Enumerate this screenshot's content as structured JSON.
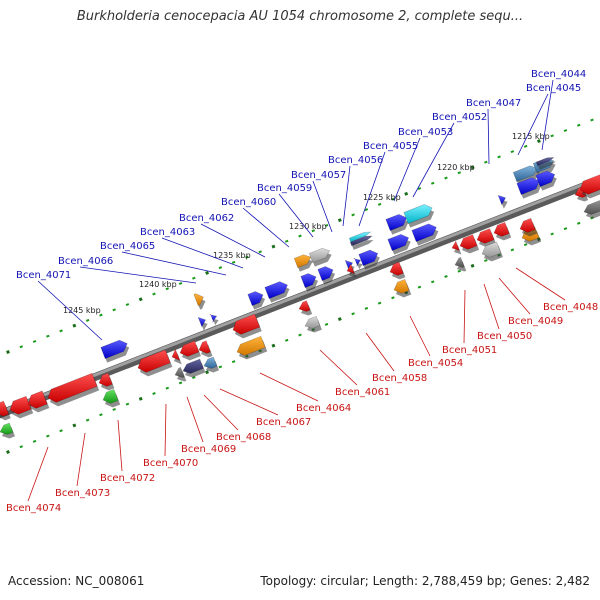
{
  "title": "Burkholderia cenocepacia AU 1054 chromosome 2, complete sequ...",
  "footer": {
    "accession": "Accession: NC_008061",
    "summary": "Topology: circular; Length: 2,788,459 bp; Genes: 2,482"
  },
  "colors": {
    "backbone": "#8a8a8a",
    "tick_major": "#1a8a1a",
    "forward_label": "#1414b4",
    "reverse_label": "#c81414",
    "blue_gene": "#1a1ae6",
    "red_gene": "#e61a1a",
    "orange_gene": "#f08c00",
    "gray_gene": "#b4b4b4",
    "cyan_gene": "#19d2e6",
    "dark_gene": "#3c3c78",
    "steel_gene": "#4682b4",
    "green_gene": "#1eb41e"
  },
  "ruler_labels": [
    "1215 kbp",
    "1220 kbp",
    "1225 kbp",
    "1230 kbp",
    "1235 kbp",
    "1240 kbp",
    "1245 kbp"
  ],
  "forward_genes": [
    "Bcen_4044",
    "Bcen_4045",
    "Bcen_4047",
    "Bcen_4052",
    "Bcen_4053",
    "Bcen_4055",
    "Bcen_4056",
    "Bcen_4057",
    "Bcen_4059",
    "Bcen_4060",
    "Bcen_4062",
    "Bcen_4063",
    "Bcen_4065",
    "Bcen_4066",
    "Bcen_4071"
  ],
  "reverse_genes": [
    "Bcen_4048",
    "Bcen_4049",
    "Bcen_4050",
    "Bcen_4051",
    "Bcen_4054",
    "Bcen_4058",
    "Bcen_4061",
    "Bcen_4064",
    "Bcen_4067",
    "Bcen_4068",
    "Bcen_4069",
    "Bcen_4070",
    "Bcen_4072",
    "Bcen_4073",
    "Bcen_4074"
  ]
}
